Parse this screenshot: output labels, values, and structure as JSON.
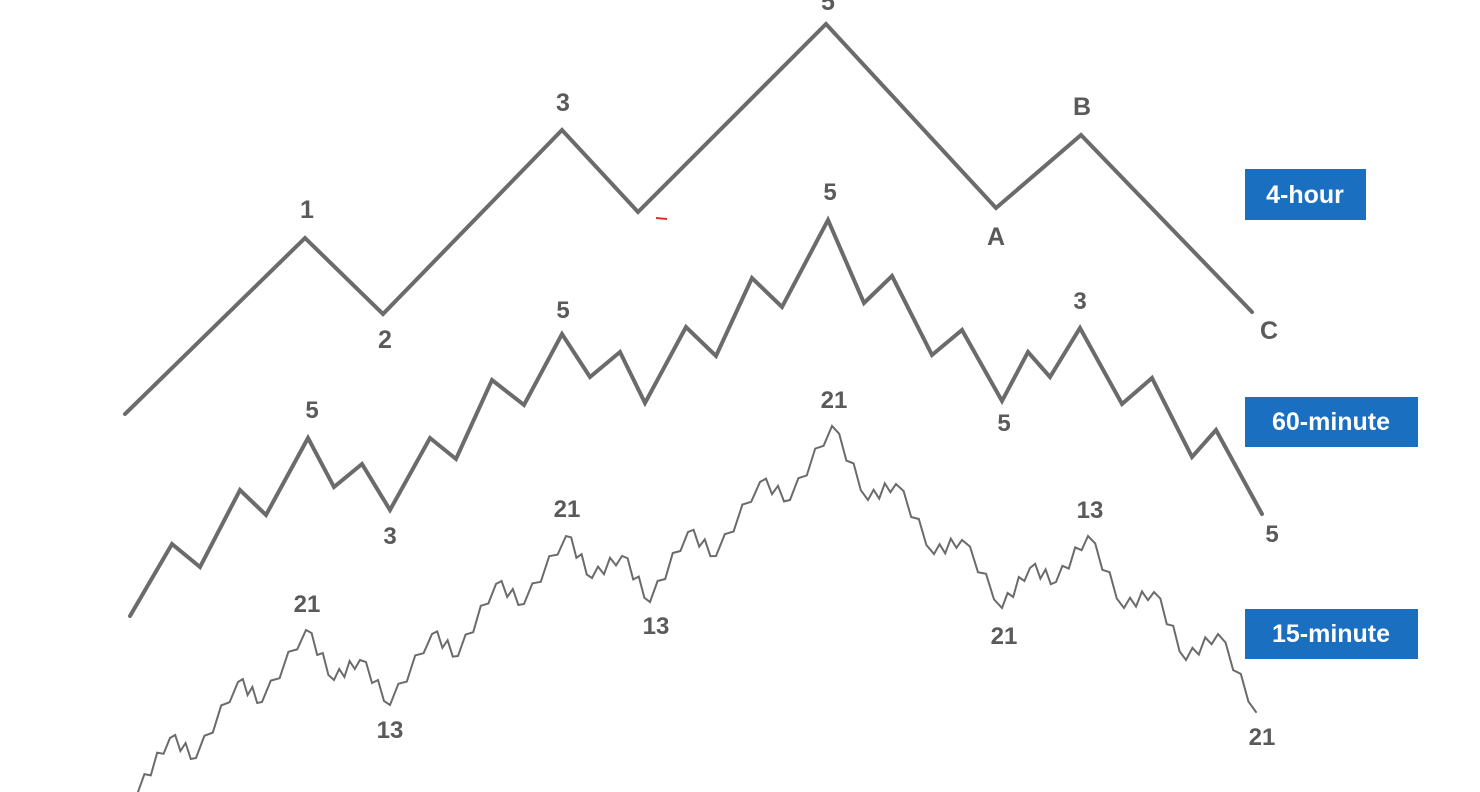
{
  "colors": {
    "wave": "#6b6b6b",
    "label": "#5a5a5a",
    "badge": "#1a6fc0",
    "badge_text": "#ffffff"
  },
  "timeframes": [
    {
      "id": "4h",
      "label": "4-hour"
    },
    {
      "id": "60m",
      "label": "60-minute"
    },
    {
      "id": "15m",
      "label": "15-minute"
    }
  ],
  "waves": {
    "main_labels": [
      "5",
      "1",
      "3",
      "2",
      "A",
      "B",
      "C"
    ],
    "mid_labels": [
      "5",
      "3",
      "5",
      "5",
      "5",
      "3",
      "5"
    ],
    "fine_labels": [
      "21",
      "13",
      "21",
      "13",
      "21",
      "21",
      "13",
      "21"
    ]
  }
}
